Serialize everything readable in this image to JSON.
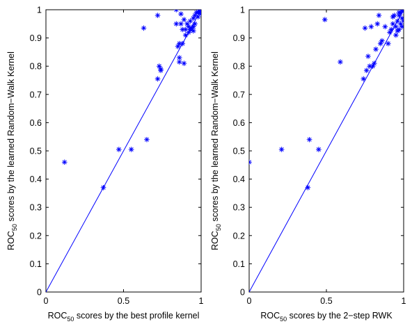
{
  "chart_data": [
    {
      "type": "scatter",
      "xlabel": {
        "prefix": "ROC",
        "sub": "50",
        "rest": " scores by the best profile kernel"
      },
      "ylabel": {
        "prefix": "ROC",
        "sub": "50",
        "rest": " scores by the learned Random−Walk Kernel"
      },
      "xlim": [
        0,
        1
      ],
      "ylim": [
        0,
        1
      ],
      "xticks": [
        "0",
        "0.5",
        "1"
      ],
      "yticks": [
        "0",
        "0.1",
        "0.2",
        "0.3",
        "0.4",
        "0.5",
        "0.6",
        "0.7",
        "0.8",
        "0.9",
        "1"
      ],
      "diagonal": [
        [
          0,
          0
        ],
        [
          1,
          1
        ]
      ],
      "marker": "*",
      "color": "#0000ff",
      "x": [
        0.12,
        0.37,
        0.47,
        0.55,
        0.65,
        0.63,
        0.72,
        0.73,
        0.74,
        0.72,
        0.74,
        0.84,
        0.84,
        0.85,
        0.86,
        0.86,
        0.86,
        0.87,
        0.88,
        0.88,
        0.89,
        0.89,
        0.9,
        0.9,
        0.91,
        0.92,
        0.92,
        0.93,
        0.93,
        0.94,
        0.95,
        0.95,
        0.96,
        0.96,
        0.97,
        0.98,
        0.98,
        0.99,
        0.99,
        1.0,
        1.0,
        0.99,
        0.87,
        0.95
      ],
      "y": [
        0.46,
        0.37,
        0.505,
        0.505,
        0.54,
        0.935,
        0.98,
        0.8,
        0.79,
        0.755,
        0.785,
        1.0,
        0.95,
        0.87,
        0.83,
        0.815,
        0.88,
        0.985,
        0.93,
        0.88,
        0.81,
        0.965,
        0.93,
        0.91,
        0.95,
        0.92,
        0.94,
        0.93,
        0.96,
        0.935,
        0.94,
        0.97,
        0.95,
        0.98,
        0.99,
        0.99,
        0.975,
        1.0,
        0.99,
        0.985,
        1.0,
        0.995,
        0.95,
        0.925
      ]
    },
    {
      "type": "scatter",
      "xlabel": {
        "prefix": "ROC",
        "sub": "50",
        "rest": " scores by the 2−step RWK"
      },
      "ylabel": {
        "prefix": "ROC",
        "sub": "50",
        "rest": " scores by the learned Random−Walk Kernel"
      },
      "xlim": [
        0,
        1
      ],
      "ylim": [
        0,
        1
      ],
      "xticks": [
        "0",
        "0.5",
        "1"
      ],
      "yticks": [
        "0",
        "0.1",
        "0.2",
        "0.3",
        "0.4",
        "0.5",
        "0.6",
        "0.7",
        "0.8",
        "0.9",
        "1"
      ],
      "diagonal": [
        [
          0,
          0
        ],
        [
          1,
          1
        ]
      ],
      "marker": "*",
      "color": "#0000ff",
      "x": [
        0.0,
        0.21,
        0.38,
        0.39,
        0.45,
        0.49,
        0.59,
        0.74,
        0.75,
        0.76,
        0.77,
        0.78,
        0.79,
        0.8,
        0.81,
        0.82,
        0.83,
        0.84,
        0.85,
        0.86,
        0.88,
        0.9,
        0.91,
        0.92,
        0.93,
        0.93,
        0.94,
        0.95,
        0.95,
        0.96,
        0.97,
        0.97,
        0.98,
        0.98,
        0.99,
        0.99,
        1.0,
        1.0,
        0.96,
        0.99,
        1.0,
        0.97
      ],
      "y": [
        0.46,
        0.505,
        0.37,
        0.54,
        0.505,
        0.965,
        0.815,
        0.755,
        0.935,
        0.785,
        0.835,
        0.8,
        0.94,
        0.8,
        0.81,
        0.86,
        0.95,
        0.98,
        0.88,
        0.89,
        0.94,
        0.88,
        0.92,
        0.93,
        0.95,
        0.975,
        0.98,
        0.91,
        0.94,
        0.96,
        0.98,
        0.93,
        0.99,
        0.95,
        1.0,
        0.97,
        0.995,
        1.0,
        0.925,
        0.94,
        0.96,
        0.99
      ]
    }
  ]
}
